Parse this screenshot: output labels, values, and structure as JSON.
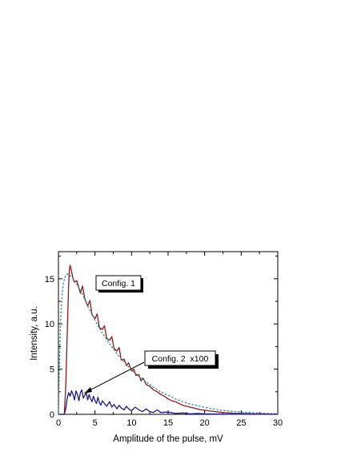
{
  "chart_data": {
    "type": "line",
    "title": "",
    "xlabel": "Amplitude of the pulse, mV",
    "ylabel": "Intensity, a.u.",
    "xlim": [
      0,
      30
    ],
    "ylim": [
      0,
      18
    ],
    "xticks": [
      0,
      5,
      10,
      15,
      20,
      25,
      30
    ],
    "yticks": [
      0,
      5,
      10,
      15
    ],
    "grid": false,
    "legend": "none",
    "annotations": [
      {
        "text": "Config. 1"
      },
      {
        "text": "Config. 2  x100",
        "arrow_to": {
          "x": 3.5,
          "y": 2.3
        }
      }
    ],
    "series": [
      {
        "key": "config1_measured",
        "style": "solid",
        "color": "#8b1a1a",
        "x": [
          0,
          0.8,
          1.0,
          1.2,
          1.4,
          1.5,
          1.6,
          1.8,
          2.0,
          2.2,
          2.5,
          2.8,
          3.0,
          3.3,
          3.6,
          4.0,
          4.3,
          4.6,
          5.0,
          5.3,
          5.6,
          6.0,
          6.3,
          6.6,
          7.0,
          7.3,
          7.6,
          8.0,
          8.3,
          8.6,
          9.0,
          9.3,
          9.6,
          10.0,
          10.3,
          10.6,
          11.0,
          11.3,
          11.6,
          12.0,
          12.5,
          13.0,
          13.5,
          14.0,
          14.5,
          15.0,
          15.5,
          16.0,
          16.5,
          17.0,
          17.5,
          18.0,
          18.5,
          19.0,
          19.5,
          20.0,
          20.5,
          21.0,
          21.5,
          22.0,
          22.5,
          23.0,
          23.5,
          24.0,
          25.0,
          26.0,
          27.0,
          28.0,
          29.0,
          30.0
        ],
        "y": [
          0,
          0,
          3.0,
          9.0,
          14.5,
          16.0,
          16.5,
          15.8,
          15.0,
          14.6,
          14.8,
          14.0,
          13.4,
          14.2,
          12.8,
          12.0,
          12.6,
          11.0,
          10.6,
          11.1,
          9.6,
          9.4,
          9.8,
          8.4,
          8.2,
          8.6,
          7.3,
          7.0,
          7.4,
          6.0,
          6.1,
          5.4,
          5.7,
          4.8,
          5.0,
          4.3,
          4.4,
          3.7,
          4.0,
          3.3,
          3.1,
          2.7,
          2.5,
          2.2,
          2.0,
          1.7,
          1.5,
          1.4,
          1.2,
          1.0,
          0.9,
          0.8,
          0.7,
          0.6,
          0.5,
          0.45,
          0.4,
          0.35,
          0.3,
          0.25,
          0.2,
          0.18,
          0.15,
          0.12,
          0.1,
          0.07,
          0.05,
          0.04,
          0.03,
          0.02
        ]
      },
      {
        "key": "config1_fit",
        "style": "dashed",
        "color": "#2e8b8b",
        "x": [
          0,
          0.1,
          0.3,
          0.5,
          0.7,
          0.9,
          1.1,
          1.3,
          1.5,
          2.0,
          2.5,
          3.0,
          3.5,
          4.0,
          4.5,
          5.0,
          6.0,
          7.0,
          8.0,
          9.0,
          10.0,
          11.0,
          12.0,
          13.0,
          14.0,
          15.0,
          16.0,
          17.0,
          18.0,
          19.0,
          20.0,
          21.0,
          22.0,
          23.0,
          24.0,
          25.0,
          26.0,
          27.0,
          28.0,
          29.0,
          30.0
        ],
        "y": [
          0,
          4.0,
          10.5,
          13.3,
          14.6,
          15.2,
          15.5,
          15.5,
          15.4,
          15.0,
          14.4,
          13.7,
          12.9,
          12.0,
          11.2,
          10.4,
          9.0,
          7.8,
          6.7,
          5.8,
          4.9,
          4.2,
          3.6,
          3.0,
          2.5,
          2.1,
          1.7,
          1.4,
          1.15,
          0.95,
          0.78,
          0.62,
          0.5,
          0.4,
          0.32,
          0.25,
          0.2,
          0.15,
          0.12,
          0.09,
          0.07
        ]
      },
      {
        "key": "config2_x100",
        "style": "solid",
        "color": "#1a1a8b",
        "x": [
          0,
          0.8,
          1.0,
          1.2,
          1.4,
          1.6,
          1.8,
          2.0,
          2.2,
          2.4,
          2.6,
          2.8,
          3.0,
          3.2,
          3.4,
          3.6,
          3.8,
          4.0,
          4.2,
          4.4,
          4.6,
          4.8,
          5.0,
          5.2,
          5.4,
          5.6,
          5.8,
          6.0,
          6.3,
          6.6,
          7.0,
          7.3,
          7.6,
          8.0,
          8.3,
          8.6,
          9.0,
          9.3,
          9.6,
          10.0,
          10.5,
          11.0,
          11.5,
          12.0,
          12.5,
          13.0,
          13.5,
          14.0,
          15.0,
          16.0,
          17.0,
          18.0,
          19.0,
          20.0,
          22.0,
          24.0,
          26.0,
          28.0,
          30.0
        ],
        "y": [
          0,
          0,
          0.6,
          1.8,
          2.4,
          2.0,
          2.6,
          2.2,
          1.6,
          2.6,
          2.2,
          1.5,
          2.4,
          2.7,
          1.8,
          2.1,
          2.4,
          1.6,
          2.2,
          1.7,
          1.4,
          2.0,
          1.5,
          1.2,
          1.9,
          1.3,
          1.0,
          1.5,
          1.2,
          0.9,
          1.4,
          0.8,
          1.1,
          0.6,
          1.0,
          0.7,
          0.5,
          0.9,
          0.6,
          0.4,
          0.8,
          0.5,
          0.3,
          0.6,
          0.3,
          0.2,
          0.5,
          0.2,
          0.25,
          0.1,
          0.15,
          0.05,
          0.1,
          0.05,
          0.03,
          0.02,
          0.02,
          0.01,
          0.0
        ]
      }
    ]
  }
}
